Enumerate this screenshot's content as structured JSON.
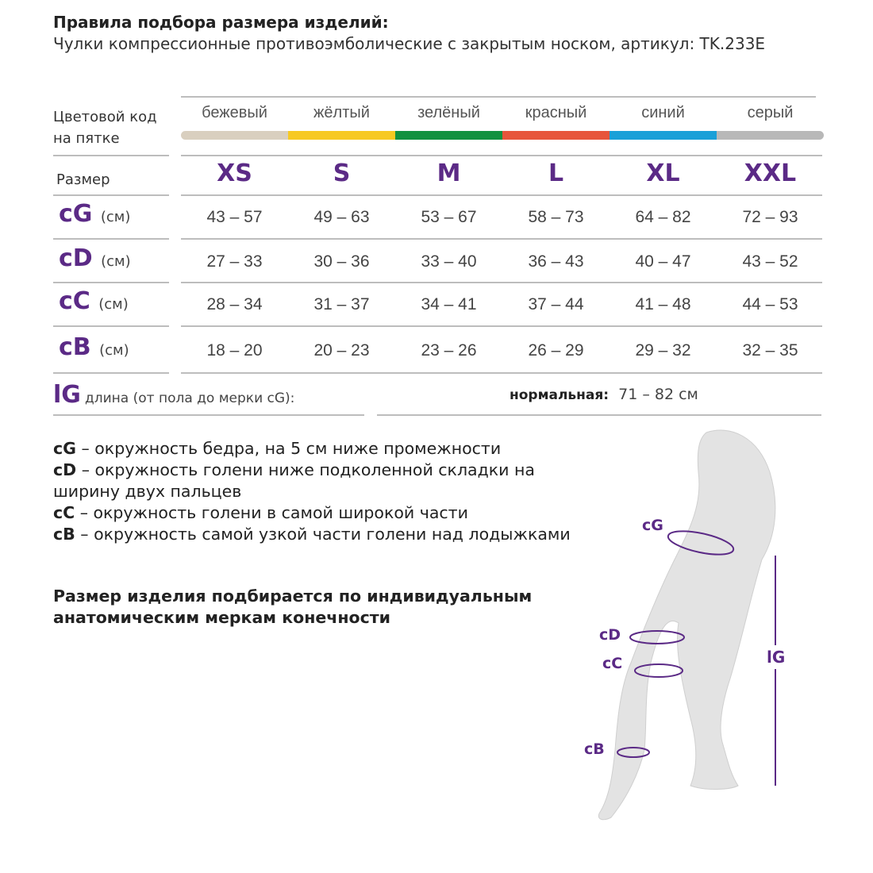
{
  "title": "Правила подбора размера изделий:",
  "subtitle": "Чулки компрессионные противоэмболические с закрытым носком, артикул: TK.233E",
  "color_label": "Цветовой код на пятке",
  "size_label": "Размер",
  "unit": "(см)",
  "columns": [
    {
      "color_name": "бежевый",
      "color": "#d9cfbf",
      "size": "XS"
    },
    {
      "color_name": "жёлтый",
      "color": "#f7c922",
      "size": "S"
    },
    {
      "color_name": "зелёный",
      "color": "#12913f",
      "size": "M"
    },
    {
      "color_name": "красный",
      "color": "#e7553b",
      "size": "L"
    },
    {
      "color_name": "синий",
      "color": "#1aa0d8",
      "size": "XL"
    },
    {
      "color_name": "серый",
      "color": "#b8b8b8",
      "size": "XXL"
    }
  ],
  "rows": [
    {
      "code": "cG",
      "values": [
        "43 – 57",
        "49 – 63",
        "53 – 67",
        "58 – 73",
        "64 – 82",
        "72 – 93"
      ]
    },
    {
      "code": "cD",
      "values": [
        "27 – 33",
        "30 – 36",
        "33 – 40",
        "36 – 43",
        "40 – 47",
        "43 – 52"
      ]
    },
    {
      "code": "cC",
      "values": [
        "28 – 34",
        "31 – 37",
        "34 – 41",
        "37 – 44",
        "41 – 48",
        "44 – 53"
      ]
    },
    {
      "code": "cB",
      "values": [
        "18 – 20",
        "20 – 23",
        "23 – 26",
        "26 – 29",
        "29 – 32",
        "32 – 35"
      ]
    }
  ],
  "length": {
    "code": "lG",
    "label": "длина (от пола до мерки cG):",
    "type": "нормальная:",
    "value": "71 – 82 см"
  },
  "descriptions": [
    {
      "code": "cG",
      "text": " – окружность бедра, на 5 см ниже промежности"
    },
    {
      "code": "cD",
      "text": " – окружность голени ниже подколенной складки на ширину двух пальцев"
    },
    {
      "code": "cC",
      "text": " – окружность голени в самой широкой части"
    },
    {
      "code": "cB",
      "text": " – окружность самой узкой части голени над лодыжками"
    }
  ],
  "note": "Размер изделия подбирается по индивидуальным анатомическим меркам конечности",
  "figure_labels": {
    "cG": "cG",
    "cD": "cD",
    "cC": "cC",
    "cB": "cB",
    "lG": "lG"
  },
  "accent_color": "#5b2a86"
}
